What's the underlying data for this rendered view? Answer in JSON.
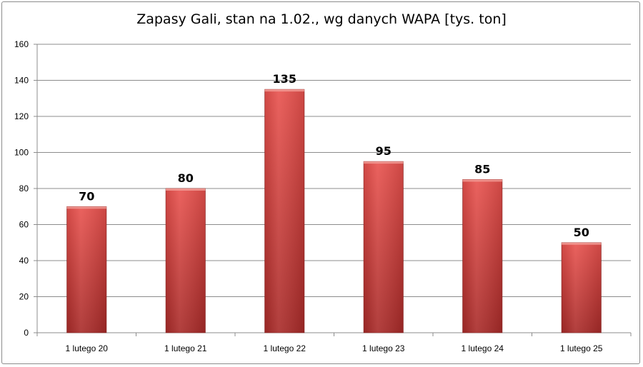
{
  "colors": {
    "bar_light": "#e8514d",
    "bar_dark": "#a82a28",
    "grid": "#8c8c8c",
    "axis": "#8c8c8c"
  },
  "chart_data": {
    "type": "bar",
    "title": "Zapasy Gali, stan na 1.02., wg danych WAPA [tys. ton]",
    "categories": [
      "1 lutego 20",
      "1 lutego 21",
      "1 lutego 22",
      "1 lutego 23",
      "1 lutego 24",
      "1 lutego 25"
    ],
    "values": [
      70,
      80,
      135,
      95,
      85,
      50
    ],
    "data_labels": [
      "70",
      "80",
      "135",
      "95",
      "85",
      "50"
    ],
    "ylim": [
      0,
      160
    ],
    "yticks": [
      0,
      20,
      40,
      60,
      80,
      100,
      120,
      140,
      160
    ],
    "grid": true,
    "xlabel": "",
    "ylabel": ""
  }
}
